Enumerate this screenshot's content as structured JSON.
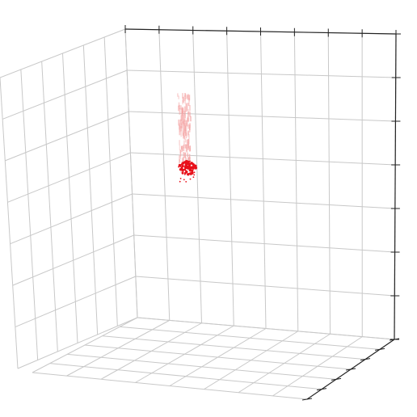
{
  "chart_data": {
    "type": "scatter",
    "projection": "3d",
    "title": "",
    "xlabel": "",
    "ylabel": "",
    "zlabel": "",
    "grid": true,
    "tick_labels_visible": false,
    "axis_line_color": "#222222",
    "grid_color": "#c8c8c8",
    "point_color": "#e8101a",
    "trail_color": "#f4a4a4",
    "cluster": {
      "center": [
        3.2,
        3.8,
        7.7
      ],
      "trail_top": [
        3.2,
        3.8,
        9.0
      ]
    }
  }
}
